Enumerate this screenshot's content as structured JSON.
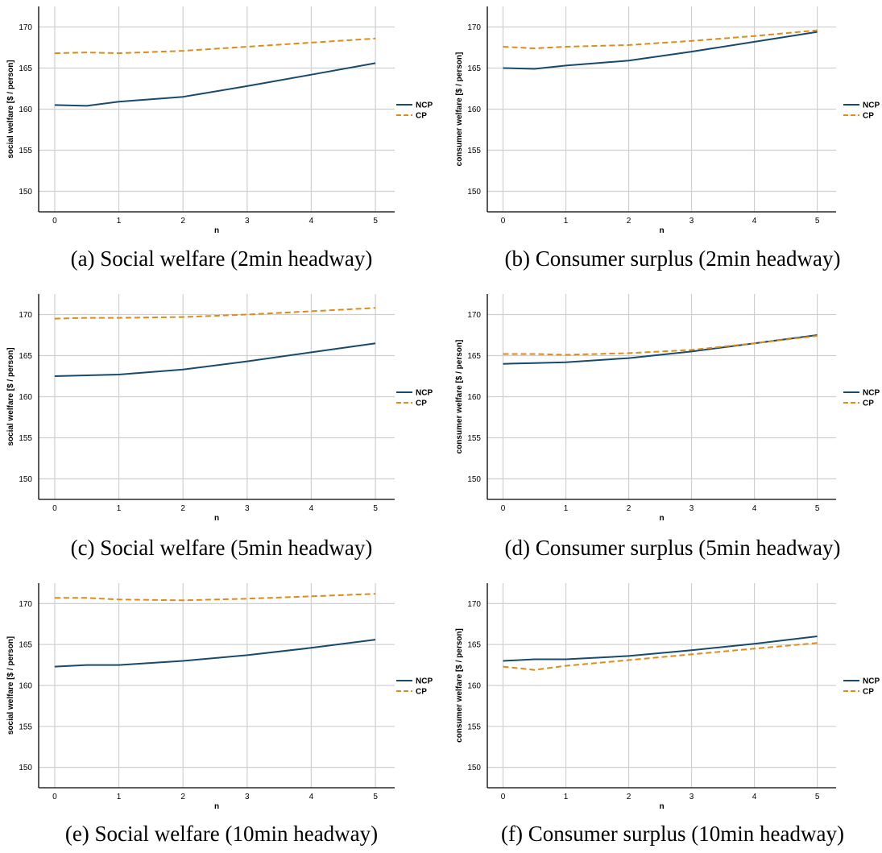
{
  "colors": {
    "NCP": "#174a6d",
    "CP": "#de8c17"
  },
  "panels": [
    {
      "caption": "(a) Social welfare (2min headway)"
    },
    {
      "caption": "(b) Consumer surplus (2min headway)"
    },
    {
      "caption": "(c) Social welfare (5min headway)"
    },
    {
      "caption": "(d) Consumer surplus (5min headway)"
    },
    {
      "caption": "(e) Social welfare (10min headway)"
    },
    {
      "caption": "(f) Consumer surplus (10min headway)"
    }
  ],
  "chart_data": [
    {
      "type": "line",
      "xlabel": "n",
      "ylabel": "social welfare [$ / person]",
      "x": [
        0,
        0.5,
        1,
        2,
        3,
        4,
        5
      ],
      "xticks": [
        0,
        1,
        2,
        3,
        4,
        5
      ],
      "yticks": [
        150,
        155,
        160,
        165,
        170
      ],
      "xlim": [
        -0.25,
        5.3
      ],
      "ylim": [
        147.5,
        172.5
      ],
      "legend": "right",
      "grid": true,
      "series": [
        {
          "name": "NCP",
          "style": "solid",
          "values": [
            160.5,
            160.4,
            160.9,
            161.5,
            162.8,
            164.2,
            165.6
          ]
        },
        {
          "name": "CP",
          "style": "dashed",
          "values": [
            166.8,
            166.9,
            166.8,
            167.1,
            167.6,
            168.1,
            168.6
          ]
        }
      ]
    },
    {
      "type": "line",
      "xlabel": "n",
      "ylabel": "consumer welfare [$ / person]",
      "x": [
        0,
        0.5,
        1,
        2,
        3,
        4,
        5
      ],
      "xticks": [
        0,
        1,
        2,
        3,
        4,
        5
      ],
      "yticks": [
        150,
        155,
        160,
        165,
        170
      ],
      "xlim": [
        -0.25,
        5.3
      ],
      "ylim": [
        147.5,
        172.5
      ],
      "legend": "right",
      "grid": true,
      "series": [
        {
          "name": "NCP",
          "style": "solid",
          "values": [
            165.0,
            164.9,
            165.3,
            165.9,
            167.0,
            168.2,
            169.4
          ]
        },
        {
          "name": "CP",
          "style": "dashed",
          "values": [
            167.6,
            167.4,
            167.6,
            167.8,
            168.3,
            168.9,
            169.6
          ]
        }
      ]
    },
    {
      "type": "line",
      "xlabel": "n",
      "ylabel": "social welfare [$ / person]",
      "x": [
        0,
        0.5,
        1,
        2,
        3,
        4,
        5
      ],
      "xticks": [
        0,
        1,
        2,
        3,
        4,
        5
      ],
      "yticks": [
        150,
        155,
        160,
        165,
        170
      ],
      "xlim": [
        -0.25,
        5.3
      ],
      "ylim": [
        147.5,
        172.5
      ],
      "legend": "right",
      "grid": true,
      "series": [
        {
          "name": "NCP",
          "style": "solid",
          "values": [
            162.5,
            162.6,
            162.7,
            163.3,
            164.3,
            165.4,
            166.5
          ]
        },
        {
          "name": "CP",
          "style": "dashed",
          "values": [
            169.5,
            169.6,
            169.6,
            169.7,
            170.0,
            170.4,
            170.8
          ]
        }
      ]
    },
    {
      "type": "line",
      "xlabel": "n",
      "ylabel": "consumer welfare [$ / person]",
      "x": [
        0,
        0.5,
        1,
        2,
        3,
        4,
        5
      ],
      "xticks": [
        0,
        1,
        2,
        3,
        4,
        5
      ],
      "yticks": [
        150,
        155,
        160,
        165,
        170
      ],
      "xlim": [
        -0.25,
        5.3
      ],
      "ylim": [
        147.5,
        172.5
      ],
      "legend": "right",
      "grid": true,
      "series": [
        {
          "name": "NCP",
          "style": "solid",
          "values": [
            164.0,
            164.1,
            164.2,
            164.7,
            165.5,
            166.5,
            167.5
          ]
        },
        {
          "name": "CP",
          "style": "dashed",
          "values": [
            165.2,
            165.2,
            165.1,
            165.3,
            165.7,
            166.5,
            167.4
          ]
        }
      ]
    },
    {
      "type": "line",
      "xlabel": "n",
      "ylabel": "social welfare [$ / person]",
      "x": [
        0,
        0.5,
        1,
        2,
        3,
        4,
        5
      ],
      "xticks": [
        0,
        1,
        2,
        3,
        4,
        5
      ],
      "yticks": [
        150,
        155,
        160,
        165,
        170
      ],
      "xlim": [
        -0.25,
        5.3
      ],
      "ylim": [
        147.5,
        172.5
      ],
      "legend": "right",
      "grid": true,
      "series": [
        {
          "name": "NCP",
          "style": "solid",
          "values": [
            162.3,
            162.5,
            162.5,
            163.0,
            163.7,
            164.6,
            165.6
          ]
        },
        {
          "name": "CP",
          "style": "dashed",
          "values": [
            170.7,
            170.7,
            170.5,
            170.4,
            170.6,
            170.9,
            171.2
          ]
        }
      ]
    },
    {
      "type": "line",
      "xlabel": "n",
      "ylabel": "consumer welfare [$ / person]",
      "x": [
        0,
        0.5,
        1,
        2,
        3,
        4,
        5
      ],
      "xticks": [
        0,
        1,
        2,
        3,
        4,
        5
      ],
      "yticks": [
        150,
        155,
        160,
        165,
        170
      ],
      "xlim": [
        -0.25,
        5.3
      ],
      "ylim": [
        147.5,
        172.5
      ],
      "legend": "right",
      "grid": true,
      "series": [
        {
          "name": "NCP",
          "style": "solid",
          "values": [
            163.0,
            163.2,
            163.2,
            163.6,
            164.3,
            165.1,
            166.0
          ]
        },
        {
          "name": "CP",
          "style": "dashed",
          "values": [
            162.3,
            161.9,
            162.4,
            163.1,
            163.8,
            164.5,
            165.2
          ]
        }
      ]
    }
  ]
}
